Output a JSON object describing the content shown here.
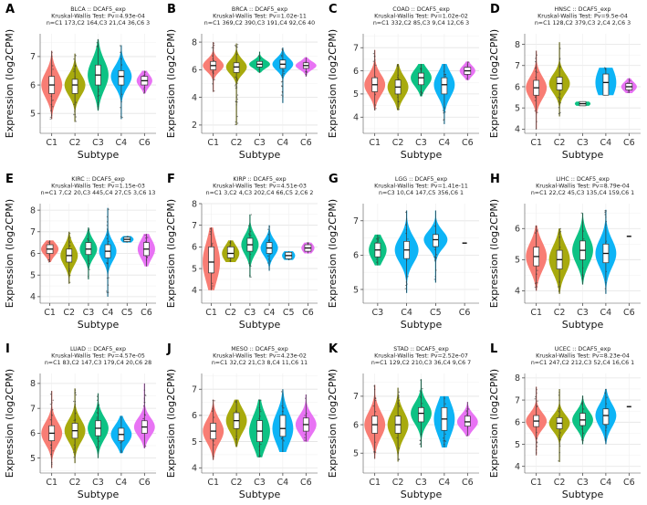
{
  "figure": {
    "type": "violin",
    "xlabel": "Subtype",
    "ylabel": "Expression (log2CPM)",
    "colors": {
      "C1": "#F8766D",
      "C2": "#A3A500",
      "C3": "#00BF7D",
      "C4": "#00B0F6",
      "C5": "#00B0F6",
      "C6": "#E76BF3"
    }
  },
  "chart_data": [
    {
      "type": "violin",
      "letter": "A",
      "title": "BLCA :: DCAF5_exp",
      "test": "Kruskal-Wallis Test: Pv=4.93e-04",
      "counts": "n=C1 173,C2 164,C3 21,C4 36,C6 3",
      "xlabel": "Subtype",
      "ylabel": "Expression (log2CPM)",
      "ylim": [
        4.3,
        7.8
      ],
      "yticks": [
        5,
        6,
        7
      ],
      "groups": [
        {
          "name": "C1",
          "median": 6.0,
          "q1": 5.7,
          "q3": 6.3,
          "min": 4.8,
          "max": 7.2,
          "color": "#F8766D"
        },
        {
          "name": "C2",
          "median": 6.0,
          "q1": 5.7,
          "q3": 6.2,
          "min": 4.7,
          "max": 7.1,
          "color": "#A3A500"
        },
        {
          "name": "C3",
          "median": 6.35,
          "q1": 6.0,
          "q3": 6.7,
          "min": 5.1,
          "max": 7.6,
          "color": "#00BF7D"
        },
        {
          "name": "C4",
          "median": 6.3,
          "q1": 6.0,
          "q3": 6.5,
          "min": 4.8,
          "max": 7.4,
          "color": "#00B0F6"
        },
        {
          "name": "C6",
          "median": 6.15,
          "q1": 6.0,
          "q3": 6.3,
          "min": 5.7,
          "max": 6.5,
          "color": "#E76BF3"
        }
      ]
    },
    {
      "type": "violin",
      "letter": "B",
      "title": "BRCA :: DCAF5_exp",
      "test": "Kruskal-Wallis Test: Pv=1.02e-11",
      "counts": "n=C1 369,C2 390,C3 191,C4 92,C6 40",
      "xlabel": "Subtype",
      "ylabel": "Expression (log2CPM)",
      "ylim": [
        1.4,
        8.6
      ],
      "yticks": [
        2,
        4,
        6,
        8
      ],
      "groups": [
        {
          "name": "C1",
          "median": 6.3,
          "q1": 6.0,
          "q3": 6.6,
          "min": 4.4,
          "max": 8.0,
          "color": "#F8766D"
        },
        {
          "name": "C2",
          "median": 6.2,
          "q1": 5.8,
          "q3": 6.5,
          "min": 2.0,
          "max": 7.9,
          "color": "#A3A500"
        },
        {
          "name": "C3",
          "median": 6.4,
          "q1": 6.2,
          "q3": 6.6,
          "min": 5.8,
          "max": 7.3,
          "color": "#00BF7D"
        },
        {
          "name": "C4",
          "median": 6.4,
          "q1": 6.1,
          "q3": 6.7,
          "min": 3.6,
          "max": 7.6,
          "color": "#00B0F6"
        },
        {
          "name": "C6",
          "median": 6.3,
          "q1": 6.1,
          "q3": 6.5,
          "min": 5.5,
          "max": 6.9,
          "color": "#E76BF3"
        }
      ]
    },
    {
      "type": "violin",
      "letter": "C",
      "title": "COAD :: DCAF5_exp",
      "test": "Kruskal-Wallis Test: Pv=1.02e-02",
      "counts": "n=C1 332,C2 85,C3 9,C4 12,C6 3",
      "xlabel": "Subtype",
      "ylabel": "Expression (log2CPM)",
      "ylim": [
        3.3,
        7.6
      ],
      "yticks": [
        4,
        5,
        6,
        7
      ],
      "groups": [
        {
          "name": "C1",
          "median": 5.4,
          "q1": 5.1,
          "q3": 5.7,
          "min": 4.3,
          "max": 6.9,
          "color": "#F8766D"
        },
        {
          "name": "C2",
          "median": 5.3,
          "q1": 5.0,
          "q3": 5.6,
          "min": 4.3,
          "max": 6.3,
          "color": "#A3A500"
        },
        {
          "name": "C3",
          "median": 5.7,
          "q1": 5.4,
          "q3": 5.9,
          "min": 4.9,
          "max": 6.3,
          "color": "#00BF7D"
        },
        {
          "name": "C4",
          "median": 5.4,
          "q1": 5.0,
          "q3": 5.7,
          "min": 3.7,
          "max": 6.3,
          "color": "#00B0F6"
        },
        {
          "name": "C6",
          "median": 6.0,
          "q1": 5.85,
          "q3": 6.15,
          "min": 5.6,
          "max": 6.4,
          "color": "#E76BF3"
        }
      ]
    },
    {
      "type": "violin",
      "letter": "D",
      "title": "HNSC :: DCAF5_exp",
      "test": "Kruskal-Wallis Test: Pv=9.5e-04",
      "counts": "n=C1 128,C2 379,C3 2,C4 2,C6 3",
      "xlabel": "Subtype",
      "ylabel": "Expression (log2CPM)",
      "ylim": [
        3.8,
        8.5
      ],
      "yticks": [
        4,
        5,
        6,
        7,
        8
      ],
      "groups": [
        {
          "name": "C1",
          "median": 5.95,
          "q1": 5.6,
          "q3": 6.3,
          "min": 4.0,
          "max": 7.7,
          "color": "#F8766D"
        },
        {
          "name": "C2",
          "median": 6.15,
          "q1": 5.85,
          "q3": 6.45,
          "min": 4.6,
          "max": 8.1,
          "color": "#A3A500"
        },
        {
          "name": "C3",
          "median": 5.2,
          "q1": 5.1,
          "q3": 5.3,
          "min": 5.1,
          "max": 5.3,
          "color": "#00BF7D"
        },
        {
          "name": "C4",
          "median": 6.2,
          "q1": 5.6,
          "q3": 6.6,
          "min": 5.6,
          "max": 6.9,
          "color": "#00B0F6"
        },
        {
          "name": "C6",
          "median": 6.0,
          "q1": 5.85,
          "q3": 6.15,
          "min": 5.7,
          "max": 6.4,
          "color": "#E76BF3"
        }
      ]
    },
    {
      "type": "violin",
      "letter": "E",
      "title": "KIRC :: DCAF5_exp",
      "test": "Kruskal-Wallis Test: Pv=1.15e-03",
      "counts": "n=C1 7,C2 20,C3 445,C4 27,C5 3,C6 13",
      "xlabel": "Subtype",
      "ylabel": "Expression (log2CPM)",
      "ylim": [
        3.7,
        8.3
      ],
      "yticks": [
        4,
        5,
        6,
        7,
        8
      ],
      "groups": [
        {
          "name": "C1",
          "median": 6.2,
          "q1": 6.0,
          "q3": 6.4,
          "min": 5.6,
          "max": 6.6,
          "color": "#F8766D"
        },
        {
          "name": "C2",
          "median": 5.9,
          "q1": 5.6,
          "q3": 6.2,
          "min": 4.6,
          "max": 7.0,
          "color": "#A3A500"
        },
        {
          "name": "C3",
          "median": 6.2,
          "q1": 5.95,
          "q3": 6.5,
          "min": 4.8,
          "max": 7.2,
          "color": "#00BF7D"
        },
        {
          "name": "C4",
          "median": 6.1,
          "q1": 5.8,
          "q3": 6.4,
          "min": 4.0,
          "max": 8.1,
          "color": "#00B0F6"
        },
        {
          "name": "C5",
          "median": 6.65,
          "q1": 6.55,
          "q3": 6.75,
          "min": 6.5,
          "max": 6.8,
          "color": "#00B0F6"
        },
        {
          "name": "C6",
          "median": 6.2,
          "q1": 5.9,
          "q3": 6.5,
          "min": 5.4,
          "max": 6.9,
          "color": "#E76BF3"
        }
      ]
    },
    {
      "type": "violin",
      "letter": "F",
      "title": "KIRP :: DCAF5_exp",
      "test": "Kruskal-Wallis Test: Pv=4.51e-03",
      "counts": "n=C1 3,C2 4,C3 202,C4 66,C5 2,C6 2",
      "xlabel": "Subtype",
      "ylabel": "Expression (log2CPM)",
      "ylim": [
        3.4,
        8.0
      ],
      "yticks": [
        4,
        5,
        6,
        7,
        8
      ],
      "groups": [
        {
          "name": "C1",
          "median": 5.3,
          "q1": 4.8,
          "q3": 6.0,
          "min": 4.0,
          "max": 6.9,
          "color": "#F8766D"
        },
        {
          "name": "C2",
          "median": 5.7,
          "q1": 5.5,
          "q3": 6.0,
          "min": 5.3,
          "max": 6.3,
          "color": "#A3A500"
        },
        {
          "name": "C3",
          "median": 6.1,
          "q1": 5.8,
          "q3": 6.4,
          "min": 4.6,
          "max": 7.5,
          "color": "#00BF7D"
        },
        {
          "name": "C4",
          "median": 5.95,
          "q1": 5.7,
          "q3": 6.2,
          "min": 4.9,
          "max": 7.0,
          "color": "#00B0F6"
        },
        {
          "name": "C5",
          "median": 5.6,
          "q1": 5.45,
          "q3": 5.75,
          "min": 5.4,
          "max": 5.8,
          "color": "#00B0F6"
        },
        {
          "name": "C6",
          "median": 5.95,
          "q1": 5.8,
          "q3": 6.1,
          "min": 5.7,
          "max": 6.2,
          "color": "#E76BF3"
        }
      ]
    },
    {
      "type": "violin",
      "letter": "G",
      "title": "LGG :: DCAF5_exp",
      "test": "Kruskal-Wallis Test: Pv=1.41e-11",
      "counts": "n=C3 10,C4 147,C5 356,C6 1",
      "xlabel": "Subtype",
      "ylabel": "Expression (log2CPM)",
      "ylim": [
        4.6,
        7.5
      ],
      "yticks": [
        5,
        6,
        7
      ],
      "groups": [
        {
          "name": "C3",
          "median": 6.15,
          "q1": 5.95,
          "q3": 6.35,
          "min": 5.7,
          "max": 6.6,
          "color": "#00BF7D"
        },
        {
          "name": "C4",
          "median": 6.15,
          "q1": 5.9,
          "q3": 6.4,
          "min": 4.9,
          "max": 7.3,
          "color": "#00B0F6"
        },
        {
          "name": "C5",
          "median": 6.45,
          "q1": 6.25,
          "q3": 6.6,
          "min": 5.2,
          "max": 7.3,
          "color": "#00B0F6"
        },
        {
          "name": "C6",
          "median": 6.35,
          "q1": 6.35,
          "q3": 6.35,
          "min": 6.35,
          "max": 6.35,
          "color": "#E76BF3"
        }
      ]
    },
    {
      "type": "violin",
      "letter": "H",
      "title": "LIHC :: DCAF5_exp",
      "test": "Kruskal-Wallis Test: Pv=8.79e-04",
      "counts": "n=C1 22,C2 45,C3 135,C4 159,C6 1",
      "xlabel": "Subtype",
      "ylabel": "Expression (log2CPM)",
      "ylim": [
        3.6,
        6.8
      ],
      "yticks": [
        4,
        5,
        6
      ],
      "groups": [
        {
          "name": "C1",
          "median": 5.1,
          "q1": 4.8,
          "q3": 5.4,
          "min": 4.0,
          "max": 6.1,
          "color": "#F8766D"
        },
        {
          "name": "C2",
          "median": 5.0,
          "q1": 4.7,
          "q3": 5.3,
          "min": 3.9,
          "max": 6.0,
          "color": "#A3A500"
        },
        {
          "name": "C3",
          "median": 5.3,
          "q1": 5.0,
          "q3": 5.6,
          "min": 4.2,
          "max": 6.5,
          "color": "#00BF7D"
        },
        {
          "name": "C4",
          "median": 5.2,
          "q1": 4.9,
          "q3": 5.5,
          "min": 3.9,
          "max": 6.6,
          "color": "#00B0F6"
        },
        {
          "name": "C6",
          "median": 5.75,
          "q1": 5.75,
          "q3": 5.75,
          "min": 5.75,
          "max": 5.75,
          "color": "#E76BF3"
        }
      ]
    },
    {
      "type": "violin",
      "letter": "I",
      "title": "LUAD :: DCAF5_exp",
      "test": "Kruskal-Wallis Test: Pv=4.57e-05",
      "counts": "n=C1 83,C2 147,C3 179,C4 20,C6 28",
      "xlabel": "Subtype",
      "ylabel": "Expression (log2CPM)",
      "ylim": [
        4.4,
        8.4
      ],
      "yticks": [
        5,
        6,
        7,
        8
      ],
      "groups": [
        {
          "name": "C1",
          "median": 6.0,
          "q1": 5.7,
          "q3": 6.3,
          "min": 4.6,
          "max": 7.7,
          "color": "#F8766D"
        },
        {
          "name": "C2",
          "median": 6.1,
          "q1": 5.8,
          "q3": 6.4,
          "min": 4.8,
          "max": 7.8,
          "color": "#A3A500"
        },
        {
          "name": "C3",
          "median": 6.2,
          "q1": 5.9,
          "q3": 6.5,
          "min": 5.0,
          "max": 7.6,
          "color": "#00BF7D"
        },
        {
          "name": "C4",
          "median": 5.95,
          "q1": 5.7,
          "q3": 6.2,
          "min": 5.2,
          "max": 6.7,
          "color": "#00B0F6"
        },
        {
          "name": "C6",
          "median": 6.25,
          "q1": 6.0,
          "q3": 6.5,
          "min": 5.4,
          "max": 8.0,
          "color": "#E76BF3"
        }
      ]
    },
    {
      "type": "violin",
      "letter": "J",
      "title": "MESO :: DCAF5_exp",
      "test": "Kruskal-Wallis Test: Pv=4.23e-02",
      "counts": "n=C1 32,C2 21,C3 8,C4 11,C6 11",
      "xlabel": "Subtype",
      "ylabel": "Expression (log2CPM)",
      "ylim": [
        3.8,
        7.6
      ],
      "yticks": [
        4,
        5,
        6,
        7
      ],
      "groups": [
        {
          "name": "C1",
          "median": 5.4,
          "q1": 5.1,
          "q3": 5.7,
          "min": 4.3,
          "max": 6.6,
          "color": "#F8766D"
        },
        {
          "name": "C2",
          "median": 5.8,
          "q1": 5.5,
          "q3": 6.1,
          "min": 4.8,
          "max": 6.6,
          "color": "#A3A500"
        },
        {
          "name": "C3",
          "median": 5.4,
          "q1": 5.0,
          "q3": 5.8,
          "min": 4.4,
          "max": 6.6,
          "color": "#00BF7D"
        },
        {
          "name": "C4",
          "median": 5.5,
          "q1": 5.2,
          "q3": 6.0,
          "min": 4.6,
          "max": 7.0,
          "color": "#00B0F6"
        },
        {
          "name": "C6",
          "median": 5.65,
          "q1": 5.4,
          "q3": 5.9,
          "min": 5.0,
          "max": 6.8,
          "color": "#E76BF3"
        }
      ]
    },
    {
      "type": "violin",
      "letter": "K",
      "title": "STAD :: DCAF5_exp",
      "test": "Kruskal-Wallis Test: Pv=2.52e-07",
      "counts": "n=C1 129,C2 210,C3 36,C4 9,C6 7",
      "xlabel": "Subtype",
      "ylabel": "Expression (log2CPM)",
      "ylim": [
        4.3,
        7.8
      ],
      "yticks": [
        5,
        6,
        7
      ],
      "groups": [
        {
          "name": "C1",
          "median": 6.0,
          "q1": 5.7,
          "q3": 6.3,
          "min": 4.8,
          "max": 7.4,
          "color": "#F8766D"
        },
        {
          "name": "C2",
          "median": 6.0,
          "q1": 5.7,
          "q3": 6.3,
          "min": 4.7,
          "max": 7.3,
          "color": "#A3A500"
        },
        {
          "name": "C3",
          "median": 6.4,
          "q1": 6.1,
          "q3": 6.6,
          "min": 5.2,
          "max": 7.6,
          "color": "#00BF7D"
        },
        {
          "name": "C4",
          "median": 6.2,
          "q1": 5.8,
          "q3": 6.6,
          "min": 5.2,
          "max": 7.0,
          "color": "#00B0F6"
        },
        {
          "name": "C6",
          "median": 6.1,
          "q1": 5.95,
          "q3": 6.3,
          "min": 5.6,
          "max": 6.8,
          "color": "#E76BF3"
        }
      ]
    },
    {
      "type": "violin",
      "letter": "L",
      "title": "UCEC :: DCAF5_exp",
      "test": "Kruskal-Wallis Test: Pv=8.23e-04",
      "counts": "n=C1 247,C2 212,C3 52,C4 16,C6 1",
      "xlabel": "Subtype",
      "ylabel": "Expression (log2CPM)",
      "ylim": [
        3.7,
        8.2
      ],
      "yticks": [
        4,
        5,
        6,
        7,
        8
      ],
      "groups": [
        {
          "name": "C1",
          "median": 6.05,
          "q1": 5.8,
          "q3": 6.3,
          "min": 4.5,
          "max": 7.6,
          "color": "#F8766D"
        },
        {
          "name": "C2",
          "median": 5.95,
          "q1": 5.7,
          "q3": 6.2,
          "min": 4.2,
          "max": 7.5,
          "color": "#A3A500"
        },
        {
          "name": "C3",
          "median": 6.1,
          "q1": 5.85,
          "q3": 6.4,
          "min": 5.0,
          "max": 7.2,
          "color": "#00BF7D"
        },
        {
          "name": "C4",
          "median": 6.3,
          "q1": 5.9,
          "q3": 6.6,
          "min": 5.0,
          "max": 7.5,
          "color": "#00B0F6"
        },
        {
          "name": "C6",
          "median": 6.7,
          "q1": 6.7,
          "q3": 6.7,
          "min": 6.7,
          "max": 6.7,
          "color": "#E76BF3"
        }
      ]
    }
  ]
}
